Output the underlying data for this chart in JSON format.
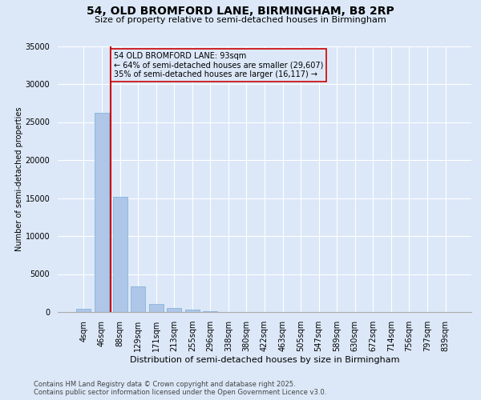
{
  "title_line1": "54, OLD BROMFORD LANE, BIRMINGHAM, B8 2RP",
  "title_line2": "Size of property relative to semi-detached houses in Birmingham",
  "xlabel": "Distribution of semi-detached houses by size in Birmingham",
  "ylabel": "Number of semi-detached properties",
  "footer_line1": "Contains HM Land Registry data © Crown copyright and database right 2025.",
  "footer_line2": "Contains public sector information licensed under the Open Government Licence v3.0.",
  "annotation_line1": "54 OLD BROMFORD LANE: 93sqm",
  "annotation_line2": "← 64% of semi-detached houses are smaller (29,607)",
  "annotation_line3": "35% of semi-detached houses are larger (16,117) →",
  "bar_color": "#aec6e8",
  "bar_border_color": "#7aadd4",
  "vline_color": "#cc0000",
  "background_color": "#dce8f8",
  "grid_color": "#ffffff",
  "categories": [
    "4sqm",
    "46sqm",
    "88sqm",
    "129sqm",
    "171sqm",
    "213sqm",
    "255sqm",
    "296sqm",
    "338sqm",
    "380sqm",
    "422sqm",
    "463sqm",
    "505sqm",
    "547sqm",
    "589sqm",
    "630sqm",
    "672sqm",
    "714sqm",
    "756sqm",
    "797sqm",
    "839sqm"
  ],
  "values": [
    400,
    26200,
    15200,
    3350,
    1100,
    550,
    300,
    130,
    0,
    0,
    0,
    0,
    0,
    0,
    0,
    0,
    0,
    0,
    0,
    0,
    0
  ],
  "ylim": [
    0,
    35000
  ],
  "yticks": [
    0,
    5000,
    10000,
    15000,
    20000,
    25000,
    30000,
    35000
  ],
  "vline_x": 1.5,
  "annot_fontsize": 7.0,
  "title1_fontsize": 10,
  "title2_fontsize": 8,
  "xlabel_fontsize": 8,
  "ylabel_fontsize": 7,
  "tick_fontsize": 7,
  "footer_fontsize": 6
}
